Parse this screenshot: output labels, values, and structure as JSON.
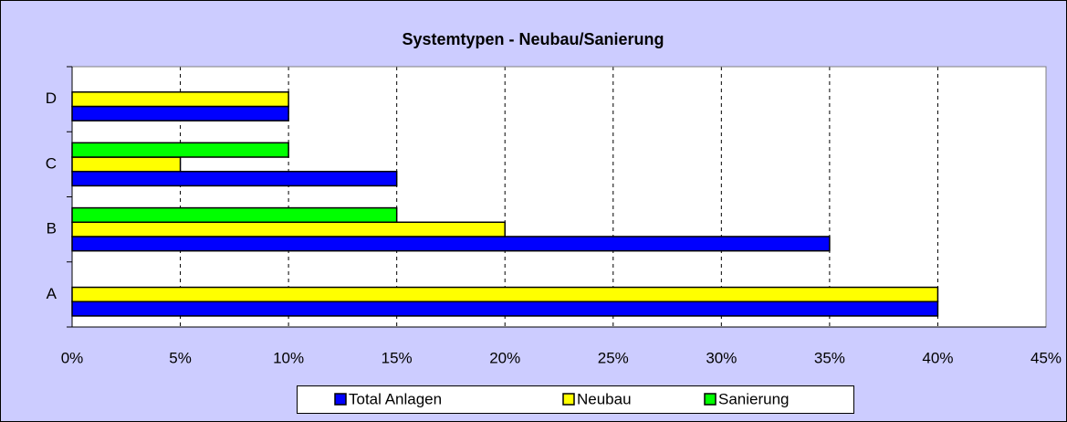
{
  "chart_data": {
    "type": "hbar",
    "title": "Systemtypen - Neubau/Sanierung",
    "categories": [
      "A",
      "B",
      "C",
      "D"
    ],
    "series": [
      {
        "name": "Total Anlagen",
        "color": "#0000ff",
        "values": [
          40,
          35,
          15,
          10
        ]
      },
      {
        "name": "Neubau",
        "color": "#ffff00",
        "values": [
          40,
          20,
          5,
          10
        ]
      },
      {
        "name": "Sanierung",
        "color": "#00ff00",
        "values": [
          null,
          15,
          10,
          null
        ]
      }
    ],
    "xlim": [
      0,
      45
    ],
    "xticks": [
      {
        "value": 0,
        "label": "0%"
      },
      {
        "value": 5,
        "label": "5%"
      },
      {
        "value": 10,
        "label": "10%"
      },
      {
        "value": 15,
        "label": "15%"
      },
      {
        "value": 20,
        "label": "20%"
      },
      {
        "value": 25,
        "label": "25%"
      },
      {
        "value": 30,
        "label": "30%"
      },
      {
        "value": 35,
        "label": "35%"
      },
      {
        "value": 40,
        "label": "40%"
      },
      {
        "value": 45,
        "label": "45%"
      }
    ],
    "grid": true,
    "legend": "bottom"
  }
}
